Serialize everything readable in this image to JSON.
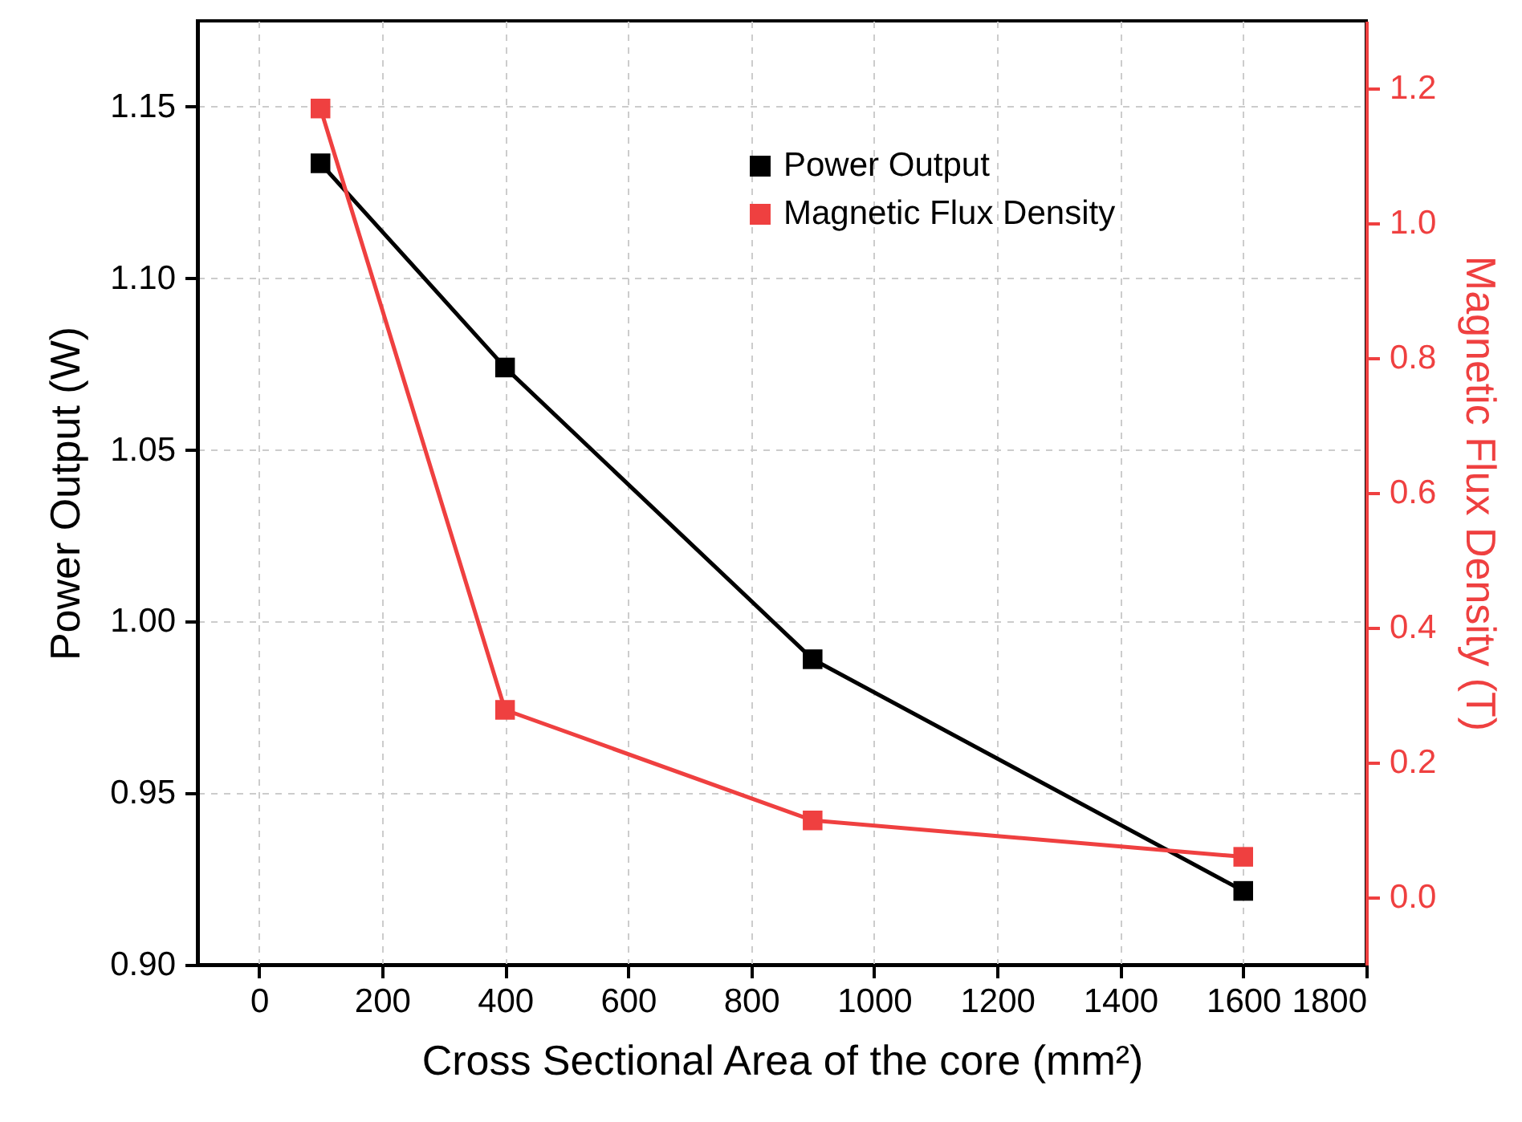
{
  "chart_data": {
    "type": "line",
    "xlabel": "Cross Sectional Area of the core (mm²)",
    "ylabel": "Power Output (W)",
    "y2label": "Magnetic Flux Density (T)",
    "x": [
      100,
      400,
      900,
      1600
    ],
    "series": [
      {
        "name": "Power Output",
        "color": "#000000",
        "values": [
          1.1335,
          1.074,
          0.989,
          0.9215
        ]
      },
      {
        "name": "Magnetic Flux Density",
        "color": "#ef4040",
        "axis": "y2",
        "values": [
          1.17,
          0.278,
          0.114,
          0.06
        ]
      }
    ],
    "xlim": [
      -100,
      1800
    ],
    "xticks": [
      0,
      200,
      400,
      600,
      800,
      1000,
      1200,
      1400,
      1600,
      1800
    ],
    "ylim": [
      0.9,
      1.175
    ],
    "yticks": [
      {
        "value": 0.9,
        "label": "0.90"
      },
      0.95,
      {
        "value": 1.0,
        "label": "1.00"
      },
      1.05,
      {
        "value": 1.1,
        "label": "1.10"
      },
      1.15
    ],
    "y2lim": [
      -0.1,
      1.3
    ],
    "y2ticks": [
      {
        "value": 0,
        "label": "0.0"
      },
      0.2,
      0.4,
      0.6,
      0.8,
      {
        "value": 1,
        "label": "1.0"
      },
      1.2
    ],
    "grid": true,
    "legend": "top right",
    "marker": "square",
    "line_style": "solid"
  }
}
